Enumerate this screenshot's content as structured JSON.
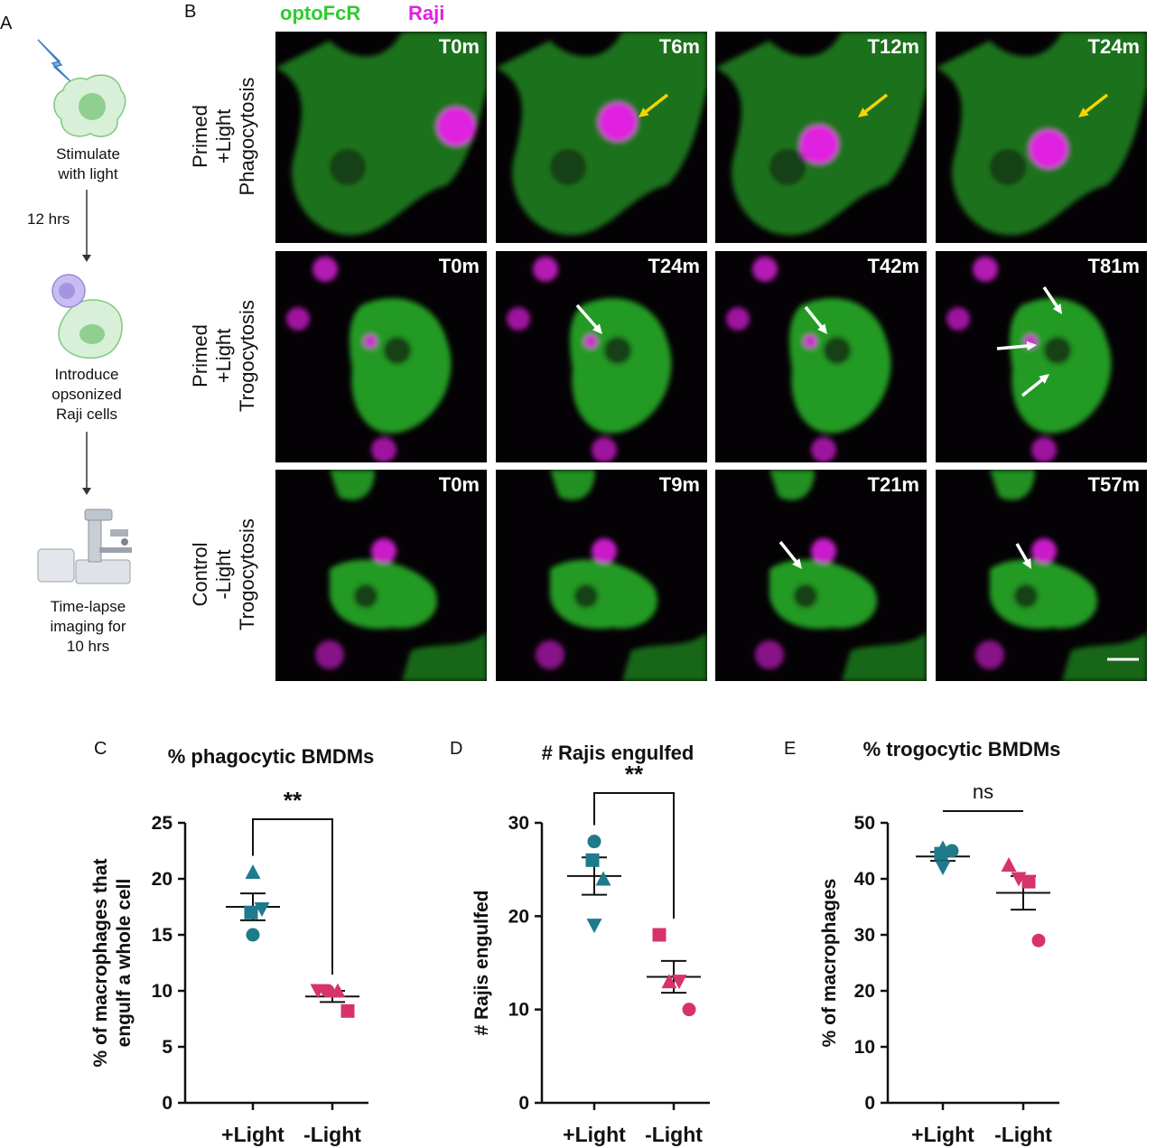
{
  "panel_letters": {
    "a": "A",
    "b": "B",
    "c": "C",
    "d": "D",
    "e": "E"
  },
  "workflow": {
    "step1": [
      "Stimulate",
      "with light"
    ],
    "interval": "12 hrs",
    "step2": [
      "Introduce",
      "opsonized",
      "Raji cells"
    ],
    "step3": [
      "Time-lapse",
      "imaging for",
      "10 hrs"
    ]
  },
  "legend": {
    "optofcr": "optoFcR",
    "raji": "Raji"
  },
  "colors": {
    "optofcr": "#2ecc2e",
    "raji": "#e020e0",
    "teal": "#1f7a8c",
    "pink": "#d6336c",
    "yellow_arrow": "#f5d400"
  },
  "rows": [
    {
      "label": [
        "Primed",
        "+Light",
        "Phagocytosis"
      ],
      "times": [
        "T0m",
        "T6m",
        "T12m",
        "T24m"
      ],
      "arrow": "yellow"
    },
    {
      "label": [
        "Primed",
        "+Light",
        "Trogocytosis"
      ],
      "times": [
        "T0m",
        "T24m",
        "T42m",
        "T81m"
      ],
      "arrow": "white"
    },
    {
      "label": [
        "Control",
        "-Light",
        "Trogocytosis"
      ],
      "times": [
        "T0m",
        "T9m",
        "T21m",
        "T57m"
      ],
      "arrow": "white"
    }
  ],
  "chart_data": [
    {
      "type": "scatter",
      "title": "% phagocytic BMDMs",
      "ylabel": "% of macrophages that engulf a whole cell",
      "ylim": [
        0,
        25
      ],
      "yticks": [
        "0",
        "5",
        "10",
        "15",
        "20",
        "25"
      ],
      "categories": [
        "+Light",
        "-Light"
      ],
      "groups": [
        {
          "category": "+Light",
          "color": "#1f7a8c",
          "points": [
            {
              "shape": "triangle-up",
              "value": 20.6
            },
            {
              "shape": "square",
              "value": 17.0
            },
            {
              "shape": "triangle-down",
              "value": 17.3
            },
            {
              "shape": "circle",
              "value": 15.0
            }
          ],
          "mean": 17.5,
          "sem": 1.2
        },
        {
          "category": "-Light",
          "color": "#d6336c",
          "points": [
            {
              "shape": "triangle-down",
              "value": 10.0
            },
            {
              "shape": "circle",
              "value": 10.0
            },
            {
              "shape": "triangle-up",
              "value": 10.0
            },
            {
              "shape": "square",
              "value": 8.2
            }
          ],
          "mean": 9.5,
          "sem": 0.5
        }
      ],
      "significance": "**"
    },
    {
      "type": "scatter",
      "title": "# Rajis engulfed",
      "ylabel": "# Rajis engulfed",
      "ylim": [
        0,
        30
      ],
      "yticks": [
        "0",
        "10",
        "20",
        "30"
      ],
      "categories": [
        "+Light",
        "-Light"
      ],
      "groups": [
        {
          "category": "+Light",
          "color": "#1f7a8c",
          "points": [
            {
              "shape": "circle",
              "value": 28
            },
            {
              "shape": "square",
              "value": 26
            },
            {
              "shape": "triangle-up",
              "value": 24
            },
            {
              "shape": "triangle-down",
              "value": 19
            }
          ],
          "mean": 24.3,
          "sem": 2.0
        },
        {
          "category": "-Light",
          "color": "#d6336c",
          "points": [
            {
              "shape": "square",
              "value": 18
            },
            {
              "shape": "triangle-up",
              "value": 13
            },
            {
              "shape": "triangle-down",
              "value": 13
            },
            {
              "shape": "circle",
              "value": 10
            }
          ],
          "mean": 13.5,
          "sem": 1.7
        }
      ],
      "significance": "**"
    },
    {
      "type": "scatter",
      "title": "% trogocytic BMDMs",
      "ylabel": "% of macrophages",
      "ylim": [
        0,
        50
      ],
      "yticks": [
        "0",
        "10",
        "20",
        "30",
        "40",
        "50"
      ],
      "categories": [
        "+Light",
        "-Light"
      ],
      "groups": [
        {
          "category": "+Light",
          "color": "#1f7a8c",
          "points": [
            {
              "shape": "triangle-up",
              "value": 45.5
            },
            {
              "shape": "square",
              "value": 44.5
            },
            {
              "shape": "circle",
              "value": 45.0
            },
            {
              "shape": "triangle-down",
              "value": 42.0
            }
          ],
          "mean": 44.0,
          "sem": 0.8
        },
        {
          "category": "-Light",
          "color": "#d6336c",
          "points": [
            {
              "shape": "triangle-up",
              "value": 42.5
            },
            {
              "shape": "triangle-down",
              "value": 40.0
            },
            {
              "shape": "square",
              "value": 39.5
            },
            {
              "shape": "circle",
              "value": 29.0
            }
          ],
          "mean": 37.5,
          "sem": 3.0
        }
      ],
      "significance": "ns"
    }
  ]
}
